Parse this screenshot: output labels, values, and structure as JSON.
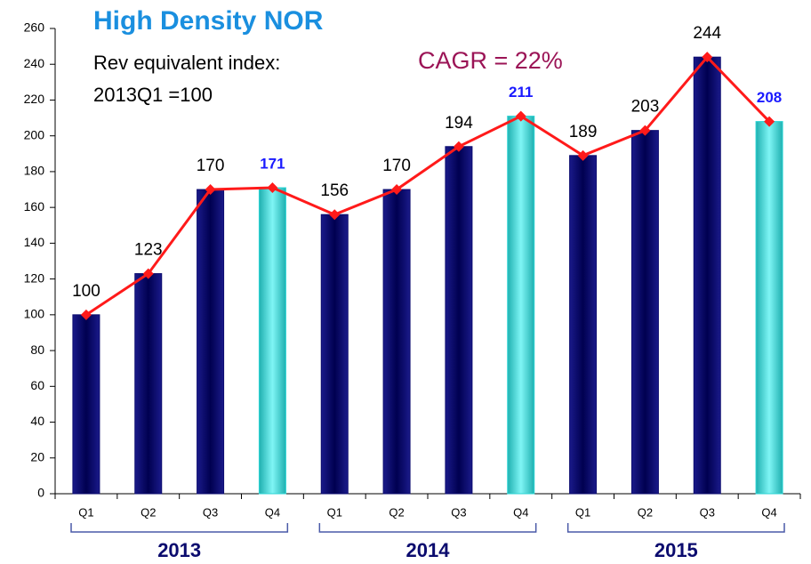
{
  "chart_data": {
    "type": "bar",
    "title": "High Density NOR",
    "subtitle": [
      "Rev equivalent index:",
      "2013Q1 =100"
    ],
    "annotation": "CAGR = 22%",
    "categories": [
      "Q1",
      "Q2",
      "Q3",
      "Q4",
      "Q1",
      "Q2",
      "Q3",
      "Q4",
      "Q1",
      "Q2",
      "Q3",
      "Q4"
    ],
    "groups": [
      "2013",
      "2014",
      "2015"
    ],
    "values": [
      100,
      123,
      170,
      171,
      156,
      170,
      194,
      211,
      189,
      203,
      244,
      208
    ],
    "bar_colors": [
      "#0b0b6e",
      "#0b0b6e",
      "#0b0b6e",
      "#2ad4d4",
      "#0b0b6e",
      "#0b0b6e",
      "#0b0b6e",
      "#2ad4d4",
      "#0b0b6e",
      "#0b0b6e",
      "#0b0b6e",
      "#2ad4d4"
    ],
    "value_label_colors": [
      "#000000",
      "#000000",
      "#000000",
      "#1a1aff",
      "#000000",
      "#000000",
      "#000000",
      "#1a1aff",
      "#000000",
      "#000000",
      "#000000",
      "#1a1aff"
    ],
    "line_color": "#ff1a1a",
    "ylim": [
      0,
      260
    ],
    "yticks": [
      0,
      20,
      40,
      60,
      80,
      100,
      120,
      140,
      160,
      180,
      200,
      220,
      240,
      260
    ]
  }
}
